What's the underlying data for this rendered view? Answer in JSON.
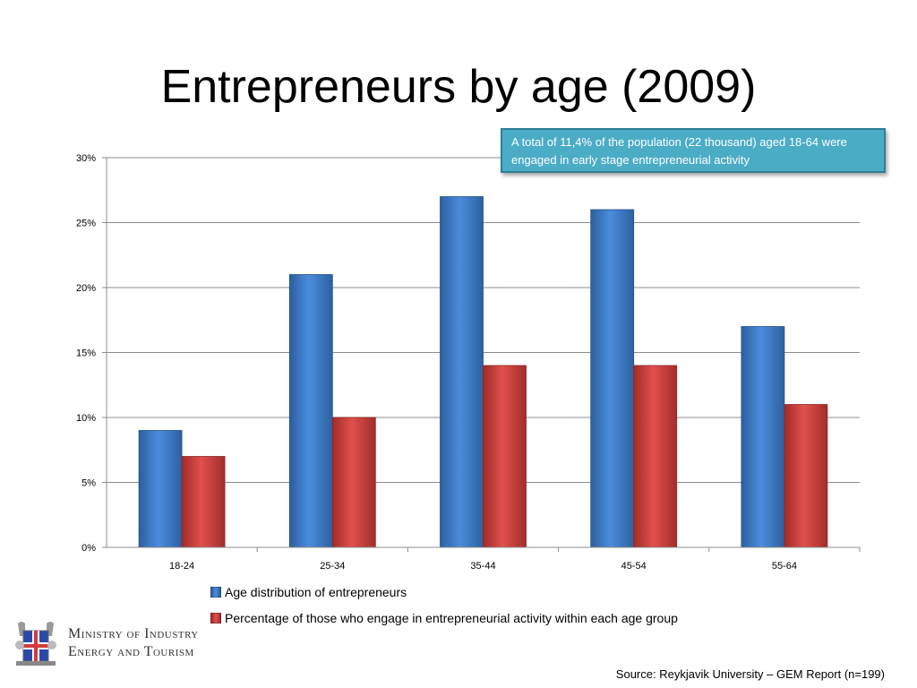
{
  "slide": {
    "title": "Entrepreneurs by age (2009)",
    "callout": "A total of 11,4% of the population (22 thousand) aged 18-64 were engaged in early stage entrepreneurial activity",
    "logo_line1": "Ministry of Industry",
    "logo_line2": "Energy and Tourism",
    "source": "Source: Reykjavik University – GEM Report (n=199)"
  },
  "chart_data": {
    "type": "bar",
    "categories": [
      "18-24",
      "25-34",
      "35-44",
      "45-54",
      "55-64"
    ],
    "series": [
      {
        "name": "Age distribution of entrepreneurs",
        "values": [
          9,
          21,
          27,
          26,
          17
        ],
        "color": "#3f7fcf"
      },
      {
        "name": "Percentage of  those who engage in entrepreneurial activity within each age group",
        "values": [
          7,
          10,
          14,
          14,
          11
        ],
        "color": "#d63d3a"
      }
    ],
    "ylim": [
      0,
      30
    ],
    "yticks": [
      0,
      5,
      10,
      15,
      20,
      25,
      30
    ],
    "ytick_labels": [
      "0%",
      "5%",
      "10%",
      "15%",
      "20%",
      "25%",
      "30%"
    ],
    "grid": true,
    "legend_position": "bottom"
  }
}
